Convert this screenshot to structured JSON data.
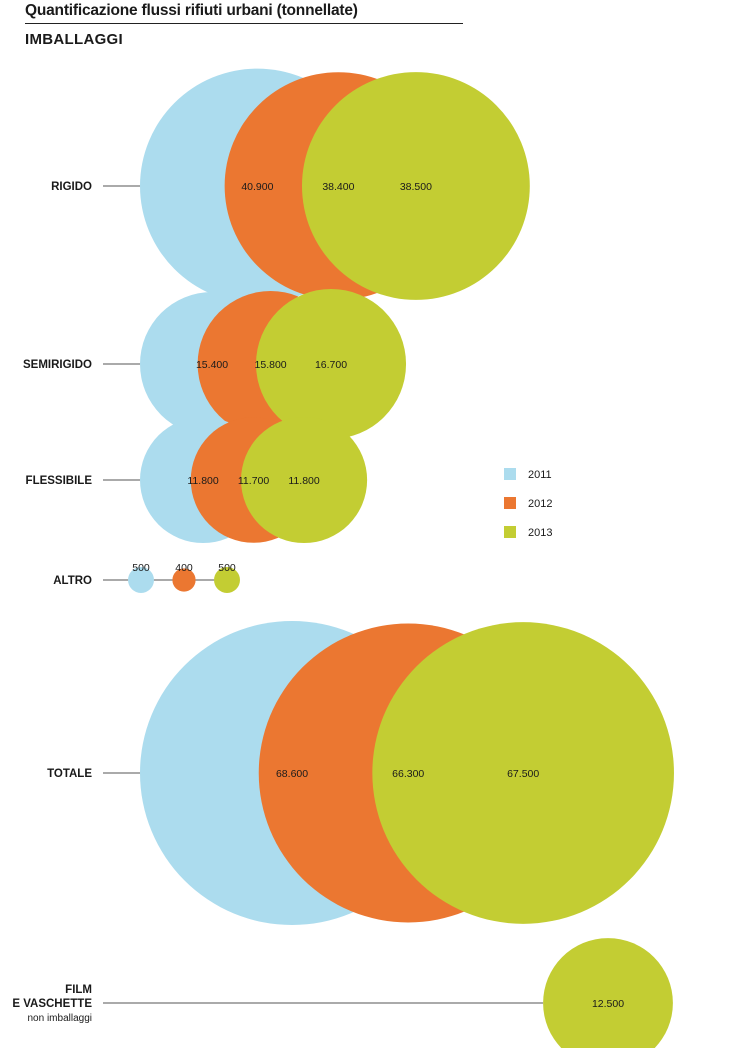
{
  "title": "Quantificazione flussi rifiuti urbani (tonnellate)",
  "subtitle": "IMBALLAGGI",
  "colors": {
    "2011": "#acdcee",
    "2012": "#eb7731",
    "2013": "#c3cd33"
  },
  "chart_data": {
    "type": "bubble",
    "legend": [
      "2011",
      "2012",
      "2013"
    ],
    "legend_position": "right",
    "rows": [
      {
        "label": [
          "RIGIDO"
        ],
        "values": [
          40900,
          38400,
          38500
        ],
        "value_labels": [
          "40.900",
          "38.400",
          "38.500"
        ]
      },
      {
        "label": [
          "SEMIRIGIDO"
        ],
        "values": [
          15400,
          15800,
          16700
        ],
        "value_labels": [
          "15.400",
          "15.800",
          "16.700"
        ]
      },
      {
        "label": [
          "FLESSIBILE"
        ],
        "values": [
          11800,
          11700,
          11800
        ],
        "value_labels": [
          "11.800",
          "11.700",
          "11.800"
        ]
      },
      {
        "label": [
          "ALTRO"
        ],
        "values": [
          500,
          400,
          500
        ],
        "value_labels": [
          "500",
          "400",
          "500"
        ]
      },
      {
        "label": [
          "TOTALE"
        ],
        "values": [
          68600,
          66300,
          67500
        ],
        "value_labels": [
          "68.600",
          "66.300",
          "67.500"
        ]
      },
      {
        "label": [
          "FILM",
          "E VASCHETTE"
        ],
        "sublabel": "non imballaggi",
        "series": [
          "2013"
        ],
        "values": [
          12500
        ],
        "value_labels": [
          "12.500"
        ]
      }
    ]
  }
}
